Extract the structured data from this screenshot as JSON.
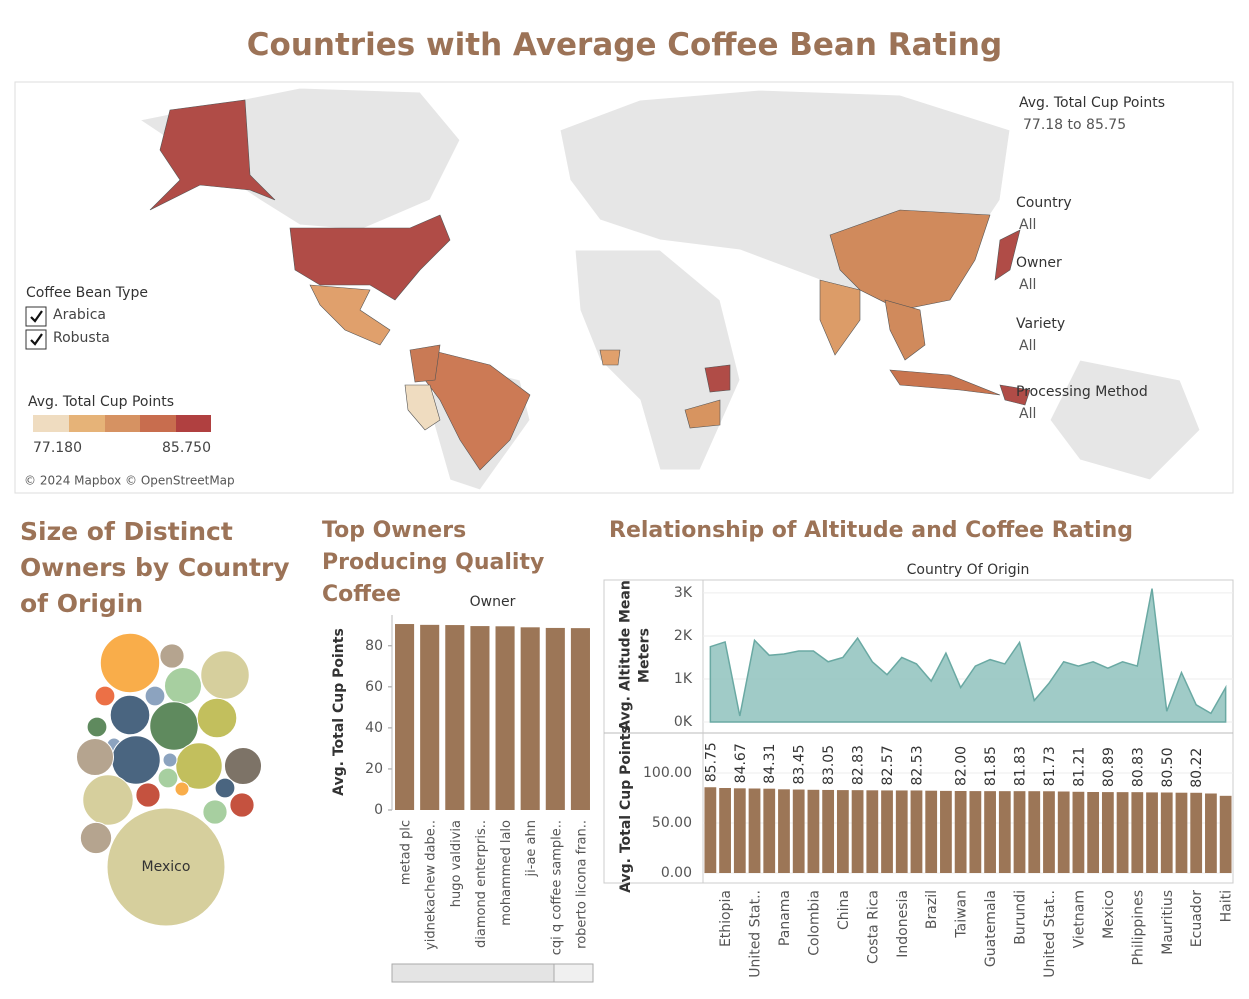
{
  "title": "Countries with Average Coffee Bean Rating",
  "map": {
    "filter_title": "Avg. Total Cup Points",
    "filter_range": "77.18 to 85.75",
    "filters": [
      {
        "name": "Country",
        "value": "All"
      },
      {
        "name": "Owner",
        "value": "All"
      },
      {
        "name": "Variety",
        "value": "All"
      },
      {
        "name": "Processing Method",
        "value": "All"
      }
    ],
    "bean_type_title": "Coffee Bean Type",
    "bean_types": [
      "Arabica",
      "Robusta"
    ],
    "legend_title": "Avg. Total Cup Points",
    "legend_min": {
      "value": 77.18,
      "label": "77.180"
    },
    "legend_max": {
      "value": 85.75,
      "label": "85.750"
    },
    "attribution": "© 2024 Mapbox © OpenStreetMap"
  },
  "chart_data": [
    {
      "type": "bubble",
      "title": "Size of Distinct Owners by Country of Origin",
      "categories": [
        "Mexico",
        null,
        null,
        null,
        null,
        null,
        null,
        null,
        null,
        null,
        null,
        null,
        null,
        null,
        null,
        null,
        null,
        null,
        null,
        null,
        null,
        null,
        null,
        null,
        null
      ],
      "values": [
        71,
        18,
        3,
        7,
        12,
        2,
        2,
        8,
        2,
        12,
        8,
        1,
        12,
        7,
        11,
        7,
        2,
        1,
        13,
        3,
        1,
        2,
        3,
        3,
        5
      ],
      "colors": [
        "#d6cf9d",
        "#f9ad4a",
        "#b5a48f",
        "#a7cfa0",
        "#d6cf9d",
        "#ec7046",
        "#8ca3bf",
        "#4a6580",
        "#5f8a5e",
        "#5f8a5e",
        "#c2bf5d",
        "#8ca3bf",
        "#4a6580",
        "#b5a48f",
        "#c2bf5d",
        "#7d7367",
        "#a7cfa0",
        "#8ca3bf",
        "#d6cf9d",
        "#c5523f",
        "#f9ad4a",
        "#4a6580",
        "#a7cfa0",
        "#c5523f",
        "#b5a48f"
      ]
    },
    {
      "type": "bar",
      "title": "Top Owners Producing Quality Coffee",
      "x_header": "Owner",
      "y_label": "Avg. Total Cup Points",
      "categories": [
        "metad plc",
        "yidnekachew dabe..",
        "hugo valdivia",
        "diamond enterpris..",
        "mohammed lalo",
        "ji-ae ahn",
        "cqi q coffee sample..",
        "roberto licona fran.."
      ],
      "values": [
        90.6,
        90.2,
        90.1,
        89.6,
        89.5,
        89.0,
        88.7,
        88.6
      ],
      "color": "#9c7657",
      "ylim": [
        0,
        95
      ],
      "yticks": [
        0,
        20,
        40,
        60,
        80
      ]
    },
    {
      "type": "panels",
      "title": "Relationship of Altitude and Coffee Rating",
      "x_header": "Country Of Origin",
      "categories": [
        null,
        "Ethiopia",
        null,
        "United Stat..",
        null,
        "Panama",
        null,
        "Colombia",
        null,
        "China",
        null,
        "Costa Rica",
        null,
        "Indonesia",
        null,
        "Brazil",
        null,
        "Taiwan",
        null,
        "Guatemala",
        null,
        "Burundi",
        null,
        "United Stat..",
        null,
        "Vietnam",
        null,
        "Mexico",
        null,
        "Philippines",
        null,
        "Mauritius",
        null,
        "Ecuador",
        null,
        "Haiti"
      ],
      "panels": [
        {
          "type": "area",
          "y_label": [
            "Avg. Altitude Mean",
            "Meters"
          ],
          "values": [
            1750,
            1860,
            140,
            1900,
            1550,
            1580,
            1650,
            1650,
            1400,
            1500,
            1950,
            1400,
            1100,
            1500,
            1350,
            950,
            1600,
            800,
            1300,
            1450,
            1350,
            1850,
            500,
            900,
            1400,
            1300,
            1400,
            1250,
            1400,
            1300,
            3100,
            250,
            1150,
            400,
            200,
            800
          ],
          "color": "#8fc2bd",
          "ylim": [
            0,
            3300
          ],
          "yticks": [
            {
              "value": 0,
              "label": "0K"
            },
            {
              "value": 1000,
              "label": "1K"
            },
            {
              "value": 2000,
              "label": "2K"
            },
            {
              "value": 3000,
              "label": "3K"
            }
          ]
        },
        {
          "type": "bar",
          "y_label": [
            "Avg. Total Cup Points"
          ],
          "values": [
            85.75,
            85.0,
            84.67,
            84.5,
            84.31,
            83.7,
            83.45,
            83.2,
            83.05,
            82.9,
            82.83,
            82.7,
            82.57,
            82.55,
            82.53,
            82.3,
            82.1,
            82.0,
            81.9,
            81.85,
            81.84,
            81.83,
            81.8,
            81.73,
            81.5,
            81.21,
            81.0,
            80.89,
            80.85,
            80.83,
            80.6,
            80.5,
            80.3,
            80.22,
            79.5,
            77.18
          ],
          "value_labels": [
            "85.75",
            null,
            "84.67",
            null,
            "84.31",
            null,
            "83.45",
            null,
            "83.05",
            null,
            "82.83",
            null,
            "82.57",
            null,
            "82.53",
            null,
            null,
            "82.00",
            null,
            "81.85",
            null,
            "81.83",
            null,
            "81.73",
            null,
            "81.21",
            null,
            "80.89",
            null,
            "80.83",
            null,
            "80.50",
            null,
            "80.22",
            null,
            null
          ],
          "color": "#9c7657",
          "ylim": [
            0,
            138
          ],
          "yticks": [
            {
              "value": 0,
              "label": "0.00"
            },
            {
              "value": 50,
              "label": "50.00"
            },
            {
              "value": 100,
              "label": "100.00"
            }
          ]
        }
      ]
    }
  ]
}
